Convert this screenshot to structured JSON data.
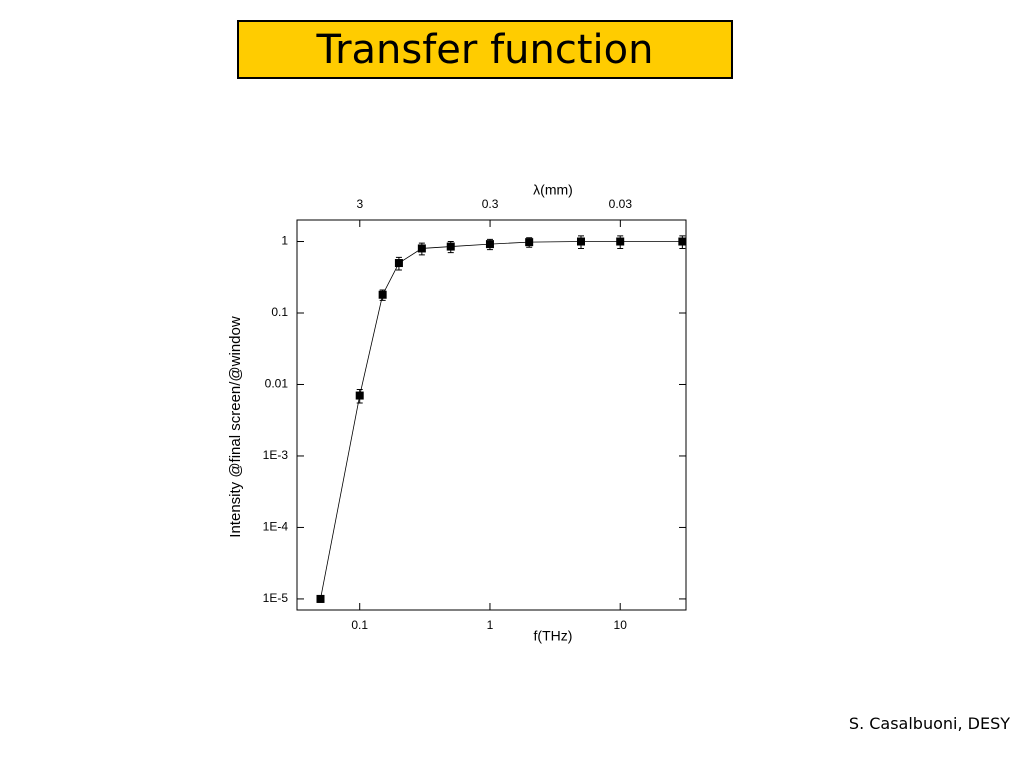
{
  "chart_data": {
    "type": "line",
    "title": "Transfer function",
    "xlabel": "f(THz)",
    "x2label": "λ(mm)",
    "ylabel": "Intensity @final screen/@window",
    "xscale": "log",
    "yscale": "log",
    "xlim": [
      0.033,
      32
    ],
    "ylim": [
      7e-06,
      2
    ],
    "xticks": [
      0.1,
      1,
      10
    ],
    "x2lim": [
      9.1,
      0.0094
    ],
    "x2ticks": [
      3,
      0.3,
      0.03
    ],
    "yticks": [
      1,
      0.1,
      0.01,
      {
        "value": 0.001,
        "label": "1E-3"
      },
      {
        "value": 0.0001,
        "label": "1E-4"
      },
      {
        "value": 1e-05,
        "label": "1E-5"
      }
    ],
    "x": [
      0.05,
      0.1,
      0.15,
      0.2,
      0.3,
      0.5,
      1,
      2,
      5,
      10,
      30
    ],
    "values": [
      1e-05,
      0.007,
      0.18,
      0.5,
      0.8,
      0.85,
      0.92,
      0.98,
      1,
      1,
      1
    ],
    "yerr": [
      1e-06,
      0.0015,
      0.03,
      0.1,
      0.15,
      0.15,
      0.15,
      0.15,
      0.2,
      0.2,
      0.2
    ],
    "color": "#000000"
  },
  "footer": "S. Casalbuoni, DESY"
}
